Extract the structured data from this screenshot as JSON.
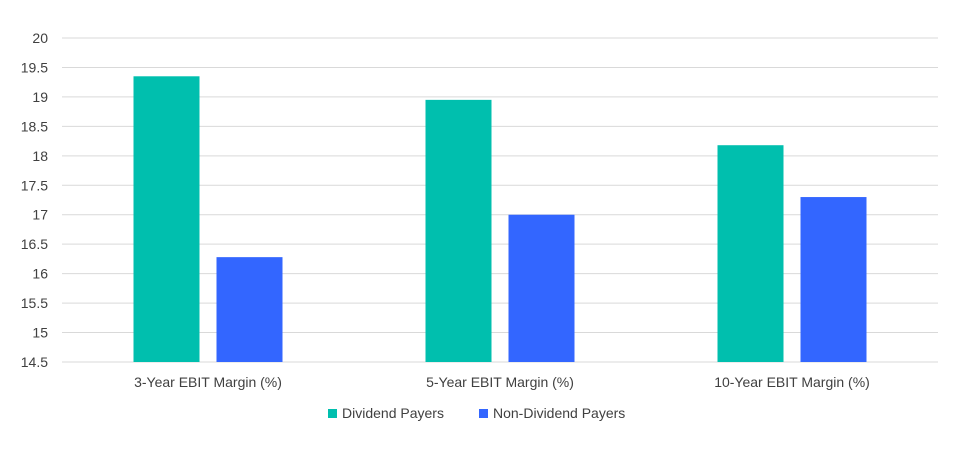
{
  "chart_data": {
    "type": "bar",
    "categories": [
      "3-Year EBIT Margin (%)",
      "5-Year EBIT Margin (%)",
      "10-Year EBIT Margin (%)"
    ],
    "series": [
      {
        "name": "Dividend Payers",
        "values": [
          19.35,
          18.95,
          18.18
        ],
        "color": "#00bfae"
      },
      {
        "name": "Non-Dividend Payers",
        "values": [
          16.28,
          17.0,
          17.3
        ],
        "color": "#3366ff"
      }
    ],
    "ylim": [
      14.5,
      20
    ],
    "yticks": [
      "14.5",
      "15",
      "15.5",
      "16",
      "16.5",
      "17",
      "17.5",
      "18",
      "18.5",
      "19",
      "19.5",
      "20"
    ],
    "grid": true,
    "legend_position": "bottom"
  }
}
